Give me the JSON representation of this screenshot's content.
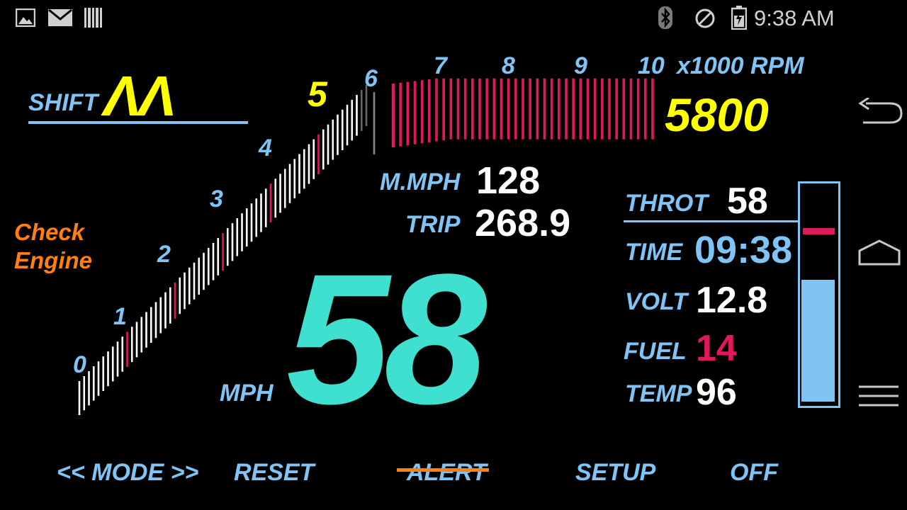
{
  "status_bar": {
    "time": "9:38 AM",
    "icons": [
      "image-icon",
      "mail-icon",
      "barcode-icon",
      "bluetooth-icon",
      "no-sync-icon",
      "battery-icon"
    ]
  },
  "shift": {
    "label": "SHIFT",
    "arrows": "ΛΛ"
  },
  "check_engine": "Check Engine",
  "tach": {
    "scale_labels": [
      "0",
      "1",
      "2",
      "3",
      "4",
      "5",
      "6",
      "7",
      "8",
      "9",
      "10"
    ],
    "unit": "x1000 RPM",
    "rpm": "5800",
    "rpm_max": 10000,
    "rpm_current": 5800,
    "colors": {
      "tick": "#ffffff",
      "redline": "#e0195a",
      "current_label": "#ffff00",
      "label": "#7fc4f5"
    }
  },
  "readouts": {
    "mmph_label": "M.MPH",
    "mmph_value": "128",
    "trip_label": "TRIP",
    "trip_value": "268.9",
    "mph_label": "MPH",
    "speed": "58"
  },
  "panel": {
    "throt_label": "THROT",
    "throt_value": "58",
    "time_label": "TIME",
    "time_value": "09:38",
    "volt_label": "VOLT",
    "volt_value": "12.8",
    "fuel_label": "FUEL",
    "fuel_value": "14",
    "temp_label": "TEMP",
    "temp_value": "96",
    "gauge_fill_fraction": 0.56
  },
  "buttons": {
    "mode": "<< MODE >>",
    "reset": "RESET",
    "alert": "ALERT",
    "setup": "SETUP",
    "off": "OFF"
  },
  "nav": [
    "back-icon",
    "home-icon",
    "menu-icon"
  ]
}
